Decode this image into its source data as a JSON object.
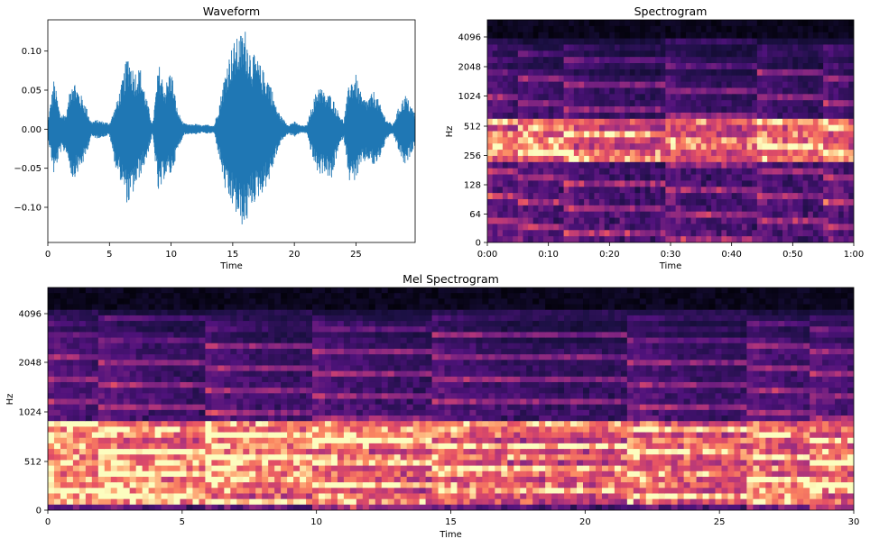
{
  "chart_data": [
    {
      "type": "line",
      "title": "Waveform",
      "xlabel": "Time",
      "ylabel": "",
      "xlim": [
        0,
        29.8
      ],
      "ylim": [
        -0.145,
        0.14
      ],
      "x_ticks": [
        0,
        5,
        10,
        15,
        20,
        25
      ],
      "x_tick_labels": [
        "0",
        "5",
        "10",
        "15",
        "20",
        "25"
      ],
      "y_ticks": [
        0.1,
        0.05,
        0.0,
        -0.05,
        -0.1
      ],
      "y_tick_labels": [
        "0.10",
        "0.05",
        "0.00",
        "−0.05",
        "−0.10"
      ],
      "series_color": "#1f77b4",
      "envelope": {
        "t": [
          0,
          0.5,
          1.0,
          1.5,
          2.0,
          2.5,
          3.0,
          3.5,
          4.0,
          4.5,
          5.0,
          5.5,
          6.0,
          6.5,
          7.0,
          7.5,
          8.0,
          8.5,
          9.0,
          9.5,
          10.0,
          10.5,
          11.0,
          11.5,
          12.0,
          12.5,
          13.0,
          13.5,
          14.0,
          14.5,
          15.0,
          15.5,
          16.0,
          16.5,
          17.0,
          17.5,
          18.0,
          18.5,
          19.0,
          19.5,
          20.0,
          20.5,
          21.0,
          21.5,
          22.0,
          22.5,
          23.0,
          23.5,
          24.0,
          24.5,
          25.0,
          25.5,
          26.0,
          26.5,
          27.0,
          27.5,
          28.0,
          28.5,
          29.0,
          29.5,
          29.8
        ],
        "upper": [
          0.01,
          0.065,
          0.02,
          0.02,
          0.07,
          0.05,
          0.035,
          0.01,
          0.012,
          0.01,
          0.008,
          0.03,
          0.06,
          0.1,
          0.075,
          0.08,
          0.04,
          0.006,
          0.085,
          0.055,
          0.08,
          0.025,
          0.008,
          0.006,
          0.007,
          0.005,
          0.006,
          0.005,
          0.04,
          0.085,
          0.11,
          0.12,
          0.13,
          0.1,
          0.09,
          0.075,
          0.065,
          0.03,
          0.015,
          0.006,
          0.01,
          0.005,
          0.005,
          0.035,
          0.06,
          0.045,
          0.045,
          0.025,
          0.01,
          0.065,
          0.07,
          0.04,
          0.04,
          0.05,
          0.03,
          0.012,
          0.006,
          0.03,
          0.045,
          0.03,
          0.02
        ],
        "lower": [
          -0.01,
          -0.06,
          -0.03,
          -0.03,
          -0.065,
          -0.055,
          -0.04,
          -0.01,
          -0.012,
          -0.01,
          -0.008,
          -0.05,
          -0.07,
          -0.1,
          -0.08,
          -0.06,
          -0.04,
          -0.006,
          -0.09,
          -0.06,
          -0.06,
          -0.03,
          -0.008,
          -0.006,
          -0.007,
          -0.005,
          -0.006,
          -0.005,
          -0.045,
          -0.09,
          -0.1,
          -0.12,
          -0.128,
          -0.1,
          -0.09,
          -0.08,
          -0.065,
          -0.035,
          -0.015,
          -0.006,
          -0.01,
          -0.005,
          -0.005,
          -0.04,
          -0.06,
          -0.055,
          -0.07,
          -0.03,
          -0.01,
          -0.07,
          -0.065,
          -0.045,
          -0.04,
          -0.05,
          -0.035,
          -0.012,
          -0.006,
          -0.03,
          -0.05,
          -0.03,
          -0.02
        ]
      }
    },
    {
      "type": "heatmap",
      "title": "Spectrogram",
      "xlabel": "Time",
      "ylabel": "Hz",
      "y_scale": "log",
      "x_ticks": [
        0,
        10,
        20,
        30,
        40,
        50,
        60
      ],
      "x_tick_labels": [
        "0:00",
        "0:10",
        "0:20",
        "0:30",
        "0:40",
        "0:50",
        "1:00"
      ],
      "y_tick_labels": [
        "0",
        "64",
        "128",
        "256",
        "512",
        "1024",
        "2048",
        "4096"
      ],
      "colormap": "magma",
      "onsets": [
        0,
        4.5,
        12.5,
        28.5,
        43.5,
        55
      ],
      "bright_band_hz": [
        256,
        1024
      ]
    },
    {
      "type": "heatmap",
      "title": "Mel Spectrogram",
      "xlabel": "Time",
      "ylabel": "Hz",
      "y_scale": "mel",
      "x_ticks": [
        0,
        5,
        10,
        15,
        20,
        25,
        30
      ],
      "x_tick_labels": [
        "0",
        "5",
        "10",
        "15",
        "20",
        "25",
        "30"
      ],
      "y_tick_labels": [
        "0",
        "512",
        "1024",
        "2048",
        "4096"
      ],
      "colormap": "magma",
      "onsets": [
        0,
        1.8,
        5.8,
        9.8,
        14.2,
        21.4,
        26,
        28.3
      ],
      "bright_band_hz": [
        256,
        1024
      ]
    }
  ]
}
